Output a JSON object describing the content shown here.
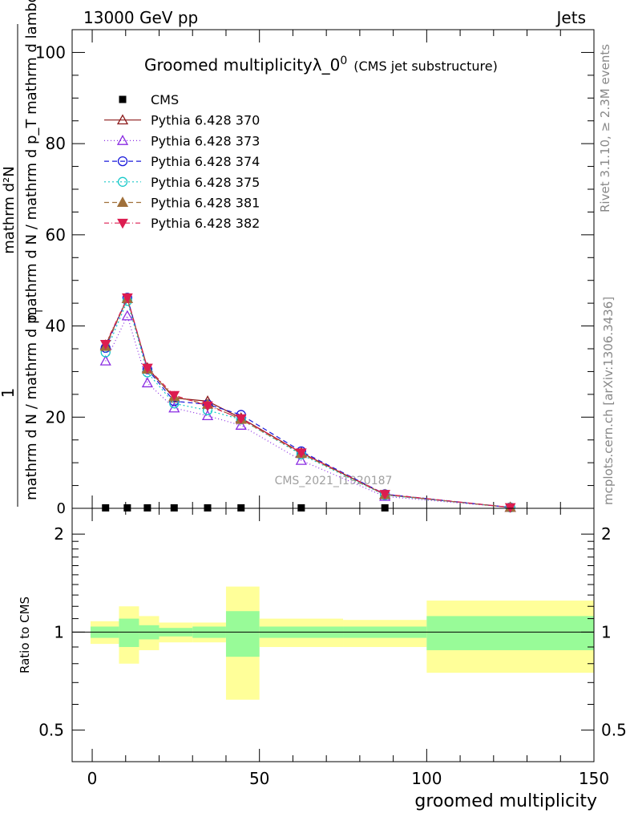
{
  "header": {
    "left": "13000 GeV pp",
    "right": "Jets"
  },
  "side_labels": {
    "rivet": "Rivet 3.1.10, ≥ 2.3M events",
    "mcplots": "mcplots.cern.ch [arXiv:1306.3436]"
  },
  "watermark": "CMS_2021_I1920187",
  "chart_data": [
    {
      "type": "line",
      "title": "Groomed multiplicityλ_0",
      "title_sup": "0",
      "title_suffix": "(CMS jet substructure)",
      "xlabel": "groomed multiplicity",
      "ylabel": "mathrm d N / mathrm d p_T mathrm d lambda",
      "ylabel_prefix": "1",
      "ylabel_den": "mathrm d N / mathrm d p",
      "ylabel_num": "mathrm d²N",
      "xlim": [
        -6,
        150
      ],
      "ylim": [
        0,
        105
      ],
      "x_ticks": [
        0,
        50,
        100,
        150
      ],
      "y_ticks": [
        20,
        40,
        60,
        80,
        100
      ],
      "y_zero_label": "0",
      "x": [
        4,
        10.5,
        16.5,
        24.5,
        34.5,
        44.5,
        62.5,
        87.5,
        125
      ],
      "series": [
        {
          "name": "CMS",
          "color": "#000000",
          "marker": "square",
          "dash": "",
          "values": [
            0.1,
            0.1,
            0.1,
            0.1,
            0.1,
            0.1,
            0.1,
            0.1,
            null
          ]
        },
        {
          "name": "Pythia 6.428 370",
          "color": "#8b1a1a",
          "marker": "triangle-open",
          "dash": "",
          "values": [
            35.8,
            46.0,
            30.8,
            24.2,
            23.5,
            19.8,
            12.2,
            3.0,
            0.2
          ]
        },
        {
          "name": "Pythia 6.428 373",
          "color": "#8a2be2",
          "marker": "triangle-open",
          "dash": "1,3",
          "values": [
            32.3,
            42.2,
            27.5,
            22.0,
            20.3,
            18.2,
            10.5,
            2.6,
            0.2
          ]
        },
        {
          "name": "Pythia 6.428 374",
          "color": "#1a1adb",
          "marker": "circle-open",
          "dash": "6,4",
          "values": [
            35.2,
            46.2,
            30.5,
            23.5,
            22.8,
            20.5,
            12.5,
            3.1,
            0.2
          ]
        },
        {
          "name": "Pythia 6.428 375",
          "color": "#17c9c9",
          "marker": "circle-open",
          "dash": "2,3",
          "values": [
            34.2,
            45.5,
            29.8,
            23.0,
            21.5,
            19.5,
            11.8,
            2.9,
            0.2
          ]
        },
        {
          "name": "Pythia 6.428 381",
          "color": "#a0703a",
          "marker": "triangle-filled",
          "dash": "6,4",
          "values": [
            35.5,
            46.0,
            30.5,
            24.5,
            22.8,
            19.5,
            12.0,
            3.0,
            0.2
          ]
        },
        {
          "name": "Pythia 6.428 382",
          "color": "#dc1c50",
          "marker": "triangle-down-filled",
          "dash": "6,3,1,3",
          "values": [
            36.0,
            46.2,
            30.8,
            24.8,
            22.5,
            19.7,
            12.2,
            3.1,
            0.2
          ]
        }
      ]
    },
    {
      "type": "bar",
      "ylabel": "Ratio to CMS",
      "log_y": true,
      "ylim": [
        0.4,
        2.4
      ],
      "x_ticks": [
        0,
        50,
        100,
        150
      ],
      "y_ticks": [
        0.5,
        1,
        2
      ],
      "y_tick_labels": [
        "0.5",
        "1",
        "2"
      ],
      "reference": 1.0,
      "bins": [
        {
          "x_lo": 0,
          "x_hi": 8,
          "inner": [
            0.96,
            1.04
          ],
          "outer": [
            0.92,
            1.08
          ]
        },
        {
          "x_lo": 8,
          "x_hi": 14,
          "inner": [
            0.9,
            1.1
          ],
          "outer": [
            0.8,
            1.2
          ]
        },
        {
          "x_lo": 14,
          "x_hi": 20,
          "inner": [
            0.95,
            1.05
          ],
          "outer": [
            0.88,
            1.12
          ]
        },
        {
          "x_lo": 20,
          "x_hi": 30,
          "inner": [
            0.97,
            1.03
          ],
          "outer": [
            0.93,
            1.07
          ]
        },
        {
          "x_lo": 30,
          "x_hi": 40,
          "inner": [
            0.96,
            1.04
          ],
          "outer": [
            0.93,
            1.07
          ]
        },
        {
          "x_lo": 40,
          "x_hi": 50,
          "inner": [
            0.84,
            1.16
          ],
          "outer": [
            0.62,
            1.38
          ]
        },
        {
          "x_lo": 50,
          "x_hi": 75,
          "inner": [
            0.96,
            1.04
          ],
          "outer": [
            0.9,
            1.1
          ]
        },
        {
          "x_lo": 75,
          "x_hi": 100,
          "inner": [
            0.96,
            1.04
          ],
          "outer": [
            0.9,
            1.09
          ]
        },
        {
          "x_lo": 100,
          "x_hi": 150,
          "inner": [
            0.88,
            1.12
          ],
          "outer": [
            0.75,
            1.25
          ]
        }
      ],
      "band_colors": {
        "inner": "#98fb98",
        "outer": "#ffff99"
      }
    }
  ]
}
